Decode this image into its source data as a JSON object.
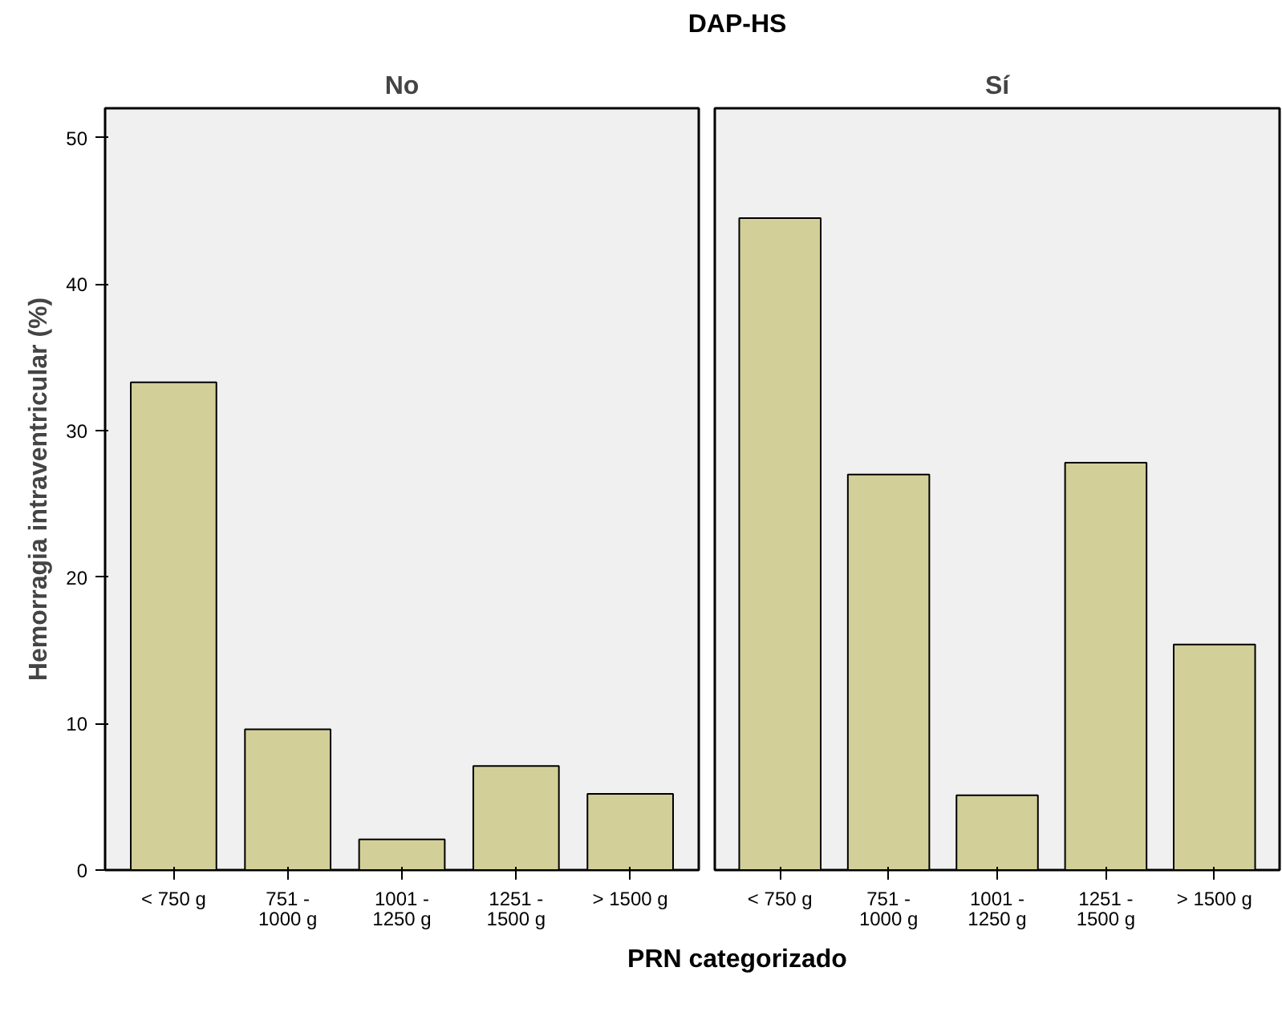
{
  "chart_data": [
    {
      "type": "bar",
      "title": "No",
      "annotations": [
        "DAP-HS"
      ],
      "xlabel": "PRN categorizado",
      "ylabel": "Hemorragia intraventricular (%)",
      "categories": [
        "< 750 g",
        "751 -\n1000 g",
        "1001 -\n1250 g",
        "1251 -\n1500 g",
        "> 1500 g"
      ],
      "values": [
        33.3,
        9.6,
        2.1,
        7.1,
        5.2
      ],
      "color": "#d2cf98",
      "ylim": [
        0,
        52
      ],
      "yticks": [
        0,
        10,
        20,
        30,
        40,
        50
      ],
      "grid": false
    },
    {
      "type": "bar",
      "title": "Sí",
      "categories": [
        "< 750 g",
        "751 -\n1000 g",
        "1001 -\n1250 g",
        "1251 -\n1500 g",
        "> 1500 g"
      ],
      "values": [
        44.5,
        27.0,
        5.1,
        27.8,
        15.4
      ],
      "color": "#d2cf98",
      "ylim": [
        0,
        52
      ],
      "yticks": [
        0,
        10,
        20,
        30,
        40,
        50
      ],
      "grid": false,
      "tick_labels": "x"
    }
  ]
}
